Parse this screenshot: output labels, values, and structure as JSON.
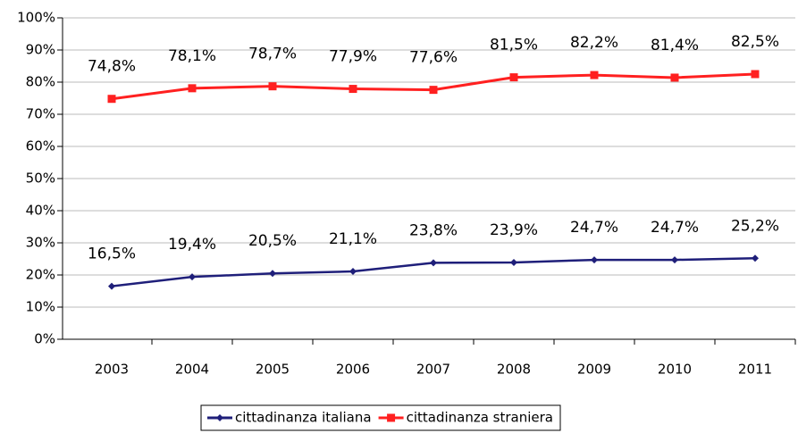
{
  "chart_data": {
    "type": "line",
    "categories": [
      "2003",
      "2004",
      "2005",
      "2006",
      "2007",
      "2008",
      "2009",
      "2010",
      "2011"
    ],
    "series": [
      {
        "name": "cittadinanza italiana",
        "color": "#1f1f7a",
        "values": [
          16.5,
          19.4,
          20.5,
          21.1,
          23.8,
          23.9,
          24.7,
          24.7,
          25.2
        ],
        "value_labels": [
          "16,5%",
          "19,4%",
          "20,5%",
          "21,1%",
          "23,8%",
          "23,9%",
          "24,7%",
          "24,7%",
          "25,2%"
        ]
      },
      {
        "name": "cittadinanza straniera",
        "color": "#ff2020",
        "values": [
          74.8,
          78.1,
          78.7,
          77.9,
          77.6,
          81.5,
          82.2,
          81.4,
          82.5
        ],
        "value_labels": [
          "74,8%",
          "78,1%",
          "78,7%",
          "77,9%",
          "77,6%",
          "81,5%",
          "82,2%",
          "81,4%",
          "82,5%"
        ]
      }
    ],
    "ylim": [
      0,
      100
    ],
    "yticks": [
      {
        "value": 0,
        "label": "0%"
      },
      {
        "value": 10,
        "label": "10%"
      },
      {
        "value": 20,
        "label": "20%"
      },
      {
        "value": 30,
        "label": "30%"
      },
      {
        "value": 40,
        "label": "40%"
      },
      {
        "value": 50,
        "label": "50%"
      },
      {
        "value": 60,
        "label": "60%"
      },
      {
        "value": 70,
        "label": "70%"
      },
      {
        "value": 80,
        "label": "80%"
      },
      {
        "value": 90,
        "label": "90%"
      },
      {
        "value": 100,
        "label": "100%"
      }
    ],
    "grid": true,
    "legend": "bottom"
  }
}
